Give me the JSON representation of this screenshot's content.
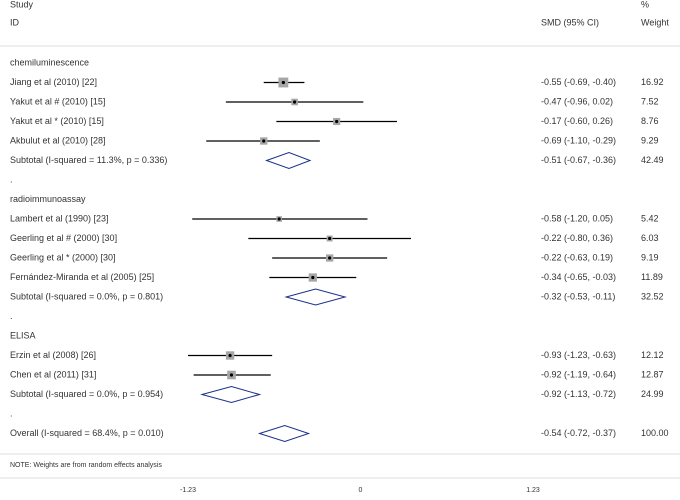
{
  "chart_data": {
    "type": "forest",
    "header": {
      "study": "Study",
      "id": "ID",
      "effect": "SMD (95% CI)",
      "weight_pct": "%",
      "weight": "Weight"
    },
    "groups": [
      {
        "name": "chemiluminescence",
        "studies": [
          {
            "label": "Jiang et al (2010) [22]",
            "effect": -0.55,
            "lower": -0.69,
            "upper": -0.4,
            "ci_label": "-0.55 (-0.69, -0.40)",
            "weight": 16.92
          },
          {
            "label": "Yakut et al # (2010) [15]",
            "effect": -0.47,
            "lower": -0.96,
            "upper": 0.02,
            "ci_label": "-0.47 (-0.96, 0.02)",
            "weight": 7.52
          },
          {
            "label": "Yakut et al * (2010) [15]",
            "effect": -0.17,
            "lower": -0.6,
            "upper": 0.26,
            "ci_label": "-0.17 (-0.60, 0.26)",
            "weight": 8.76
          },
          {
            "label": "Akbulut et al (2010) [28]",
            "effect": -0.69,
            "lower": -1.1,
            "upper": -0.29,
            "ci_label": "-0.69 (-1.10, -0.29)",
            "weight": 9.29
          }
        ],
        "subtotal": {
          "label": "Subtotal  (I-squared = 11.3%, p = 0.336)",
          "effect": -0.51,
          "lower": -0.67,
          "upper": -0.36,
          "ci_label": "-0.51 (-0.67, -0.36)",
          "weight": 42.49
        },
        "separator": "."
      },
      {
        "name": "radioimmunoassay",
        "studies": [
          {
            "label": "Lambert et al (1990) [23]",
            "effect": -0.58,
            "lower": -1.2,
            "upper": 0.05,
            "ci_label": "-0.58 (-1.20, 0.05)",
            "weight": 5.42
          },
          {
            "label": "Geerling et al # (2000) [30]",
            "effect": -0.22,
            "lower": -0.8,
            "upper": 0.36,
            "ci_label": "-0.22 (-0.80, 0.36)",
            "weight": 6.03
          },
          {
            "label": "Geerling et al * (2000) [30]",
            "effect": -0.22,
            "lower": -0.63,
            "upper": 0.19,
            "ci_label": "-0.22 (-0.63, 0.19)",
            "weight": 9.19
          },
          {
            "label": "Fernández-Miranda et al (2005) [25]",
            "effect": -0.34,
            "lower": -0.65,
            "upper": -0.03,
            "ci_label": "-0.34 (-0.65, -0.03)",
            "weight": 11.89
          }
        ],
        "subtotal": {
          "label": "Subtotal  (I-squared = 0.0%, p = 0.801)",
          "effect": -0.32,
          "lower": -0.53,
          "upper": -0.11,
          "ci_label": "-0.32 (-0.53, -0.11)",
          "weight": 32.52
        },
        "separator": "."
      },
      {
        "name": "ELISA",
        "studies": [
          {
            "label": "Erzin et al (2008) [26]",
            "effect": -0.93,
            "lower": -1.23,
            "upper": -0.63,
            "ci_label": "-0.93 (-1.23, -0.63)",
            "weight": 12.12
          },
          {
            "label": "Chen et al (2011) [31]",
            "effect": -0.92,
            "lower": -1.19,
            "upper": -0.64,
            "ci_label": "-0.92 (-1.19, -0.64)",
            "weight": 12.87
          }
        ],
        "subtotal": {
          "label": "Subtotal  (I-squared = 0.0%, p = 0.954)",
          "effect": -0.92,
          "lower": -1.13,
          "upper": -0.72,
          "ci_label": "-0.92 (-1.13, -0.72)",
          "weight": 24.99
        },
        "separator": "."
      }
    ],
    "overall": {
      "label": "Overall  (I-squared = 68.4%, p = 0.010)",
      "effect": -0.54,
      "lower": -0.72,
      "upper": -0.37,
      "ci_label": "-0.54 (-0.72, -0.37)",
      "weight": 100,
      "weight_label": "100.00"
    },
    "note": "NOTE: Weights are from random effects analysis",
    "xlim": [
      -1.23,
      1.23
    ],
    "xticks": [
      -1.23,
      0,
      1.23
    ],
    "box_color": "#a6a6a6",
    "diamond_color": "#1a2f8a"
  }
}
